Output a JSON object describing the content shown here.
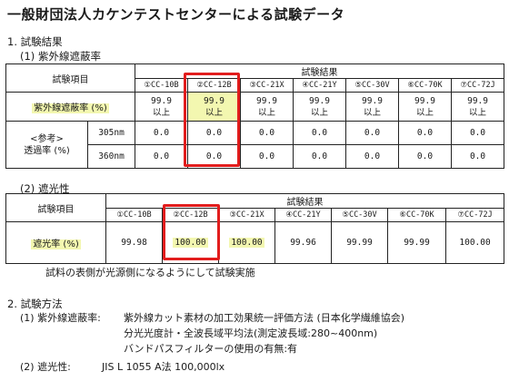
{
  "title": "一般財団法人カケンテストセンターによる試験データ",
  "section1": {
    "heading": "1. 試験結果",
    "sub1": {
      "heading": "(1) 紫外線遮蔽率",
      "item_header": "試験項目",
      "results_header": "試験結果",
      "samples": [
        "①CC-10B",
        "②CC-12B",
        "③CC-21X",
        "④CC-21Y",
        "⑤CC-30V",
        "⑥CC-70K",
        "⑦CC-72J"
      ],
      "row_shielding": {
        "label": "紫外線遮蔽率 (%)",
        "values": [
          {
            "v": "99.9",
            "u": "以上"
          },
          {
            "v": "99.9",
            "u": "以上"
          },
          {
            "v": "99.9",
            "u": "以上"
          },
          {
            "v": "99.9",
            "u": "以上"
          },
          {
            "v": "99.9",
            "u": "以上"
          },
          {
            "v": "99.9",
            "u": "以上"
          },
          {
            "v": "99.9",
            "u": "以上"
          }
        ]
      },
      "row_transmittance": {
        "label_line1": "<参考>",
        "label_line2": "透過率 (%)",
        "wl_305": "305nm",
        "wl_360": "360nm",
        "values_305": [
          "0.0",
          "0.0",
          "0.0",
          "0.0",
          "0.0",
          "0.0",
          "0.0"
        ],
        "values_360": [
          "0.0",
          "0.0",
          "0.0",
          "0.0",
          "0.0",
          "0.0",
          "0.0"
        ]
      }
    },
    "sub2": {
      "heading": "(2) 遮光性",
      "item_header": "試験項目",
      "results_header": "試験結果",
      "samples": [
        "①CC-10B",
        "②CC-12B",
        "③CC-21X",
        "④CC-21Y",
        "⑤CC-30V",
        "⑥CC-70K",
        "⑦CC-72J"
      ],
      "row_label": "遮光率 (%)",
      "values": [
        "99.98",
        "100.00",
        "100.00",
        "99.96",
        "99.99",
        "99.99",
        "100.00"
      ]
    },
    "note": "試料の表側が光源側になるようにして試験実施"
  },
  "section2": {
    "heading": "2. 試験方法",
    "item1_label": "(1) 紫外線遮蔽率:",
    "item1_text": "紫外線カット素材の加工効果統一評価方法 (日本化学繊維協会)",
    "item1_line2": "分光光度計・全波長域平均法(測定波長域:280~400nm)",
    "item1_line3": "バンドパスフィルターの使用の有無:有",
    "item2_label": "(2) 遮光性:",
    "item2_text": "JIS L 1055 A法 100,000lx"
  },
  "highlight_color": "#f3f7b0",
  "emphasis_color": "#e21d1d"
}
